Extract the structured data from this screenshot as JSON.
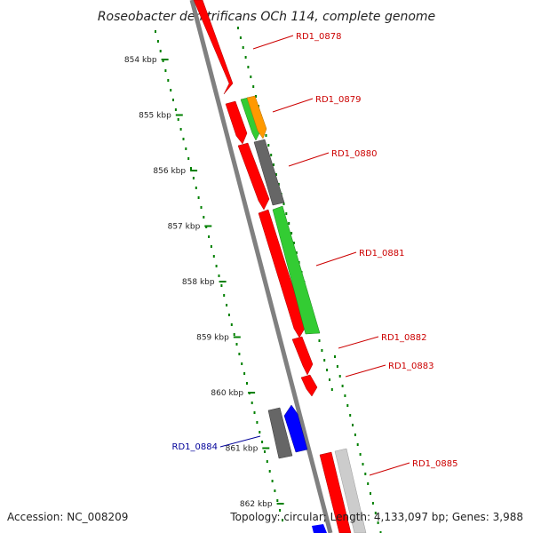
{
  "title": "Roseobacter denitrificans OCh 114, complete genome",
  "footer": {
    "accession": "Accession: NC_008209",
    "topology": "Topology: circular; Length: 4,133,097 bp; Genes: 3,988"
  },
  "colors": {
    "backbone": "#808080",
    "tick": "#008000",
    "label_forward": "#cc0000",
    "label_reverse": "#000099",
    "red": "#ff0000",
    "green": "#33cc33",
    "orange": "#ff9900",
    "gray": "#666666",
    "lightgray": "#cccccc",
    "blue": "#0000ff"
  },
  "ticks": [
    "854 kbp",
    "855 kbp",
    "856 kbp",
    "857 kbp",
    "858 kbp",
    "859 kbp",
    "860 kbp",
    "861 kbp",
    "862 kbp"
  ],
  "gene_labels": [
    "RD1_0878",
    "RD1_0879",
    "RD1_0880",
    "RD1_0881",
    "RD1_0882",
    "RD1_0883",
    "RD1_0884",
    "RD1_0885"
  ]
}
